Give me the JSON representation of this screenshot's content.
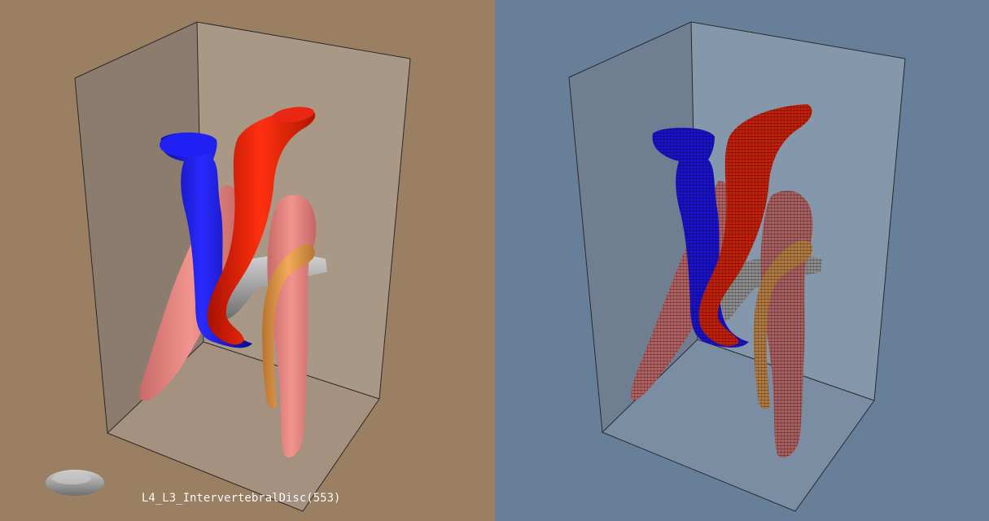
{
  "viewports": {
    "left": {
      "background": "#9a7f63",
      "mode": "surface",
      "label": "L4_L3_IntervertebralDisc(553)"
    },
    "right": {
      "background": "#687f9a",
      "mode": "voxel"
    }
  },
  "structures": [
    {
      "name": "vena-cava",
      "color": "#1818e6"
    },
    {
      "name": "aorta",
      "color": "#e62008"
    },
    {
      "name": "psoas-muscle",
      "color": "#e98480"
    },
    {
      "name": "ureter",
      "color": "#e69a48"
    },
    {
      "name": "intervertebral-disc",
      "color": "#9c9c9c"
    }
  ]
}
